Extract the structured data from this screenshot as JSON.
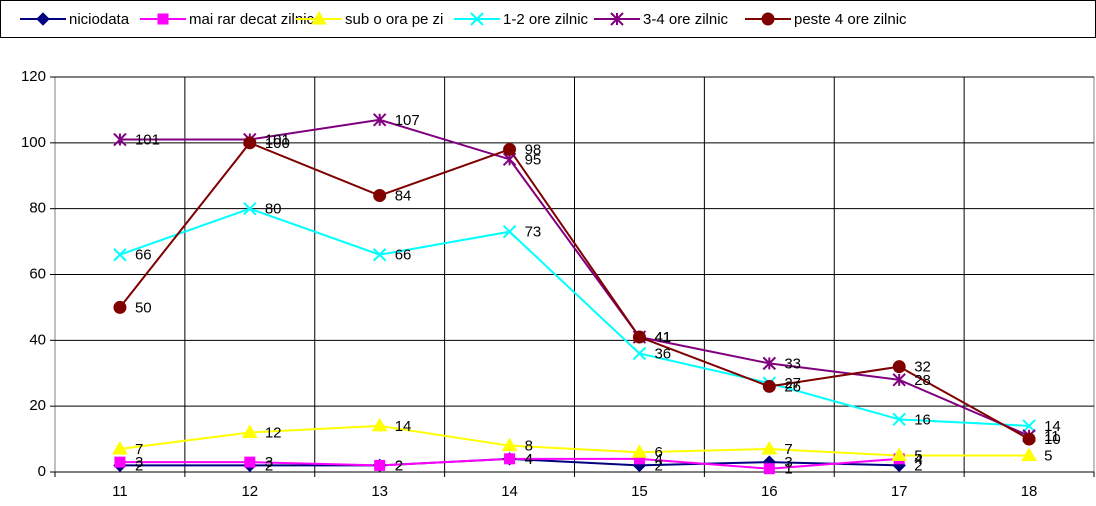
{
  "chart_data": {
    "type": "line",
    "categories": [
      "11",
      "12",
      "13",
      "14",
      "15",
      "16",
      "17",
      "18"
    ],
    "series": [
      {
        "name": "niciodata",
        "color": "#000080",
        "marker": "diamond",
        "values": [
          2,
          2,
          2,
          4,
          2,
          3,
          2,
          null
        ]
      },
      {
        "name": "mai rar decat zilnic",
        "color": "#ff00ff",
        "marker": "square",
        "values": [
          3,
          3,
          2,
          4,
          4,
          1,
          4,
          null
        ]
      },
      {
        "name": "sub o ora pe zi",
        "color": "#ffff00",
        "marker": "triangle",
        "values": [
          7,
          12,
          14,
          8,
          6,
          7,
          5,
          5
        ]
      },
      {
        "name": "1-2 ore zilnic",
        "color": "#00ffff",
        "marker": "x",
        "values": [
          66,
          80,
          66,
          73,
          36,
          27,
          16,
          14
        ]
      },
      {
        "name": "3-4 ore zilnic",
        "color": "#800080",
        "marker": "star",
        "values": [
          101,
          101,
          107,
          95,
          41,
          33,
          28,
          11
        ]
      },
      {
        "name": "peste 4 ore zilnic",
        "color": "#800000",
        "marker": "circle",
        "values": [
          50,
          100,
          84,
          98,
          41,
          26,
          32,
          10
        ]
      }
    ],
    "ylim": [
      0,
      120
    ],
    "yticks": [
      0,
      20,
      40,
      60,
      80,
      100,
      120
    ],
    "grid": true,
    "legend": "top"
  }
}
